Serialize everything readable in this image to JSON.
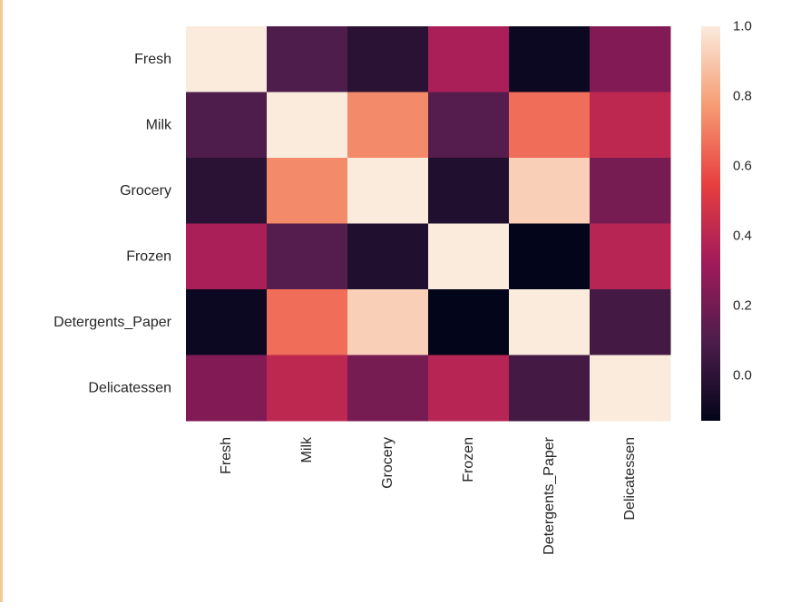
{
  "chart_data": {
    "type": "heatmap",
    "title": "",
    "xlabel": "",
    "ylabel": "",
    "rows": [
      "Fresh",
      "Milk",
      "Grocery",
      "Frozen",
      "Detergents_Paper",
      "Delicatessen"
    ],
    "columns": [
      "Fresh",
      "Milk",
      "Grocery",
      "Frozen",
      "Detergents_Paper",
      "Delicatessen"
    ],
    "values": [
      [
        1.0,
        0.1,
        -0.01,
        0.35,
        -0.1,
        0.24
      ],
      [
        0.1,
        1.0,
        0.73,
        0.12,
        0.66,
        0.41
      ],
      [
        -0.01,
        0.73,
        1.0,
        -0.04,
        0.92,
        0.21
      ],
      [
        0.35,
        0.12,
        -0.04,
        1.0,
        -0.13,
        0.39
      ],
      [
        -0.1,
        0.66,
        0.92,
        -0.13,
        1.0,
        0.07
      ],
      [
        0.24,
        0.41,
        0.21,
        0.39,
        0.07,
        1.0
      ]
    ],
    "vmin": -0.13,
    "vmax": 1.0,
    "colormap": "rocket",
    "colormap_stops": [
      "#03051a",
      "#4c1d4b",
      "#a11a5b",
      "#e83f3f",
      "#f69c73",
      "#faebdd"
    ],
    "colorbar": {
      "ticks": [
        0.0,
        0.2,
        0.4,
        0.6,
        0.8,
        1.0
      ],
      "tick_labels": [
        "0.0",
        "0.2",
        "0.4",
        "0.6",
        "0.8",
        "1.0"
      ]
    },
    "grid": false,
    "legend": "colorbar-right"
  }
}
